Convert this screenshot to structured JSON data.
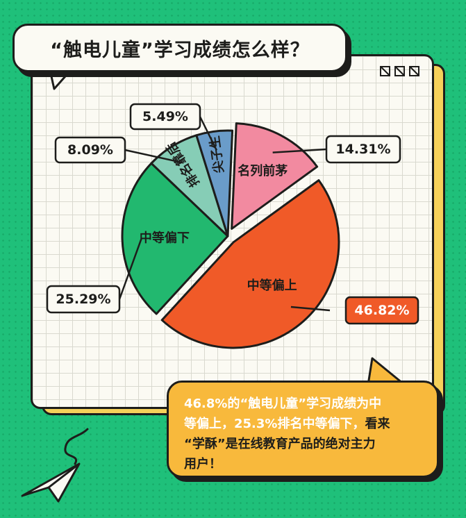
{
  "title": "“触电儿童”学习成绩怎么样？",
  "chart_data": {
    "type": "pie",
    "title": "“触电儿童”学习成绩怎么样？",
    "slices": [
      {
        "label": "中等偏上",
        "value": 46.82,
        "value_label": "46.82%",
        "color": "#f05a28",
        "exploded": true
      },
      {
        "label": "中等偏下",
        "value": 25.29,
        "value_label": "25.29%",
        "color": "#22b86f",
        "exploded": false
      },
      {
        "label": "排名靠后",
        "value": 8.09,
        "value_label": "8.09%",
        "color": "#86cdb6",
        "exploded": false
      },
      {
        "label": "尖子生",
        "value": 5.49,
        "value_label": "5.49%",
        "color": "#6a9cc9",
        "exploded": false
      },
      {
        "label": "名列前茅",
        "value": 14.31,
        "value_label": "14.31%",
        "color": "#f28aa0",
        "exploded": true
      }
    ]
  },
  "note": {
    "line1_highlight": "46.8%的“触电儿童”学习成绩为中",
    "line2_highlight": "等偏上，25.3%排名中等偏下，",
    "line2_rest": "看来",
    "line3": "“学酥”是在线教育产品的绝对主力",
    "line4": "用户！"
  },
  "colors": {
    "background": "#1fc07a",
    "card": "#fbfaf3",
    "card_shadow": "#f6d15a",
    "note": "#f8b93c",
    "outline": "#1d1d1b"
  },
  "icons": [
    "window-control-icon",
    "paper-plane-icon"
  ]
}
